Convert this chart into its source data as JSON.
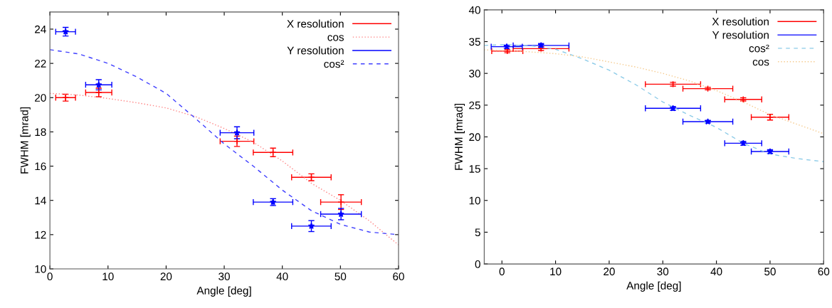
{
  "chart_data": [
    {
      "type": "scatter",
      "xlabel": "Angle [deg]",
      "ylabel": "FWHM [mrad]",
      "xlim": [
        0,
        60
      ],
      "ylim": [
        10,
        25
      ],
      "xticks": [
        0,
        10,
        20,
        30,
        40,
        50,
        60
      ],
      "yticks": [
        10,
        12,
        14,
        16,
        18,
        20,
        22,
        24
      ],
      "grid": false,
      "legend": "top right",
      "series": [
        {
          "name": "X resolution",
          "type": "scatter",
          "color": "#ff0000",
          "marker": "cross",
          "x": [
            2.7,
            8.4,
            32.2,
            38.4,
            45,
            50.1
          ],
          "values": [
            20.0,
            20.3,
            17.45,
            16.8,
            15.35,
            13.9
          ],
          "errors": [
            0.2,
            0.25,
            0.3,
            0.25,
            0.2,
            0.43
          ],
          "xerrors": [
            1.7,
            2.25,
            2.9,
            3.4,
            3.4,
            3.5
          ]
        },
        {
          "name": "cos",
          "type": "line",
          "color": "#ff8080",
          "line_style": "dotted",
          "marker": "none",
          "x": [
            0,
            5,
            10,
            15,
            20,
            25,
            30,
            35,
            40,
            45,
            50,
            55,
            60
          ],
          "values": [
            20.25,
            20.15,
            19.95,
            19.7,
            19.4,
            18.9,
            18.2,
            17.4,
            16.3,
            15.0,
            14.0,
            12.8,
            11.4
          ]
        },
        {
          "name": "Y resolution",
          "type": "scatter",
          "color": "#0000ff",
          "marker": "star",
          "x": [
            2.7,
            8.4,
            32.2,
            38.4,
            45,
            50.1
          ],
          "values": [
            23.85,
            20.75,
            17.95,
            13.9,
            12.5,
            13.2
          ],
          "errors": [
            0.25,
            0.3,
            0.35,
            0.2,
            0.32,
            0.33
          ],
          "xerrors": [
            1.7,
            2.25,
            2.9,
            3.4,
            3.4,
            3.5
          ]
        },
        {
          "name": "cos²",
          "type": "line",
          "color": "#4040ff",
          "line_style": "dashed",
          "marker": "none",
          "x": [
            0,
            5,
            10,
            15,
            20,
            25,
            30,
            35,
            40,
            45,
            50,
            55,
            60
          ],
          "values": [
            22.8,
            22.55,
            22.0,
            21.2,
            20.25,
            18.8,
            17.3,
            16.0,
            14.6,
            13.4,
            12.6,
            12.15,
            12.0
          ]
        }
      ]
    },
    {
      "type": "scatter",
      "xlabel": "Angle [deg]",
      "ylabel": "FWHM [mrad]",
      "xlim": [
        -3.3,
        60
      ],
      "ylim": [
        0,
        40
      ],
      "xticks": [
        0,
        10,
        20,
        30,
        40,
        50,
        60
      ],
      "yticks": [
        0,
        5,
        10,
        15,
        20,
        25,
        30,
        35,
        40
      ],
      "grid": false,
      "legend": "top right",
      "series": [
        {
          "name": "X resolution",
          "type": "scatter",
          "color": "#ff0000",
          "marker": "cross",
          "x": [
            1.0,
            7.3,
            31.9,
            38.4,
            45.0,
            50.0
          ],
          "values": [
            33.5,
            33.9,
            28.3,
            27.6,
            25.9,
            23.1
          ],
          "errors": [
            0.25,
            0.3,
            0.3,
            0.2,
            0.25,
            0.45
          ],
          "xerrors": [
            2.9,
            5.2,
            5.15,
            4.65,
            3.45,
            3.5
          ]
        },
        {
          "name": "Y resolution",
          "type": "scatter",
          "color": "#0000ff",
          "marker": "star",
          "x": [
            0.9,
            7.3,
            31.9,
            38.4,
            45.0,
            50.0
          ],
          "values": [
            34.2,
            34.4,
            24.5,
            22.4,
            19.0,
            17.7
          ],
          "errors": [
            0.25,
            0.3,
            0.3,
            0.2,
            0.3,
            0.3
          ],
          "xerrors": [
            2.9,
            5.2,
            5.15,
            4.65,
            3.45,
            3.5
          ]
        },
        {
          "name": "cos²",
          "type": "line",
          "color": "#8ccbe8",
          "line_style": "dashed",
          "marker": "none",
          "x": [
            -3.3,
            0,
            5,
            10,
            15,
            20,
            25,
            30,
            35,
            40,
            45,
            50,
            55,
            60
          ],
          "values": [
            34.4,
            34.5,
            34.4,
            33.8,
            32.3,
            30.5,
            28.2,
            25.5,
            23.4,
            21.5,
            19.0,
            17.3,
            16.6,
            16.1
          ]
        },
        {
          "name": "cos",
          "type": "line",
          "color": "#f5c98a",
          "line_style": "dotted",
          "marker": "none",
          "x": [
            -3.3,
            0,
            5,
            10,
            15,
            20,
            25,
            30,
            35,
            40,
            45,
            50,
            55,
            60
          ],
          "values": [
            33.7,
            33.6,
            33.4,
            33.1,
            32.6,
            31.8,
            31.0,
            30.0,
            28.8,
            27.3,
            25.5,
            23.5,
            22.0,
            20.5
          ]
        }
      ]
    }
  ]
}
